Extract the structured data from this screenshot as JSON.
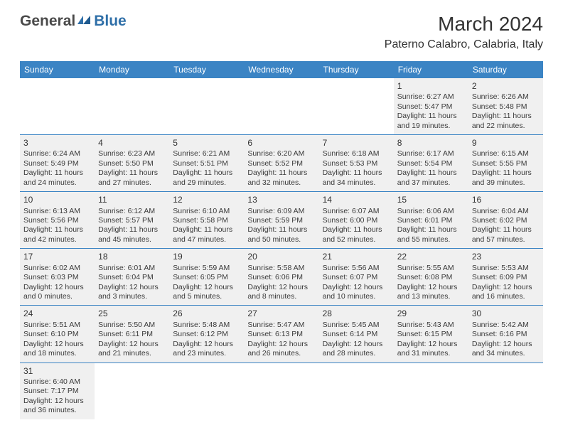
{
  "logo": {
    "general": "General",
    "blue": "Blue"
  },
  "header": {
    "month_title": "March 2024",
    "location": "Paterno Calabro, Calabria, Italy"
  },
  "colors": {
    "header_bar": "#3b84c4",
    "cell_bg": "#f0f0f0",
    "divider": "#3b84c4",
    "text": "#3a3a3a",
    "logo_gray": "#4a4a4a",
    "logo_blue": "#2f6fa8"
  },
  "day_names": [
    "Sunday",
    "Monday",
    "Tuesday",
    "Wednesday",
    "Thursday",
    "Friday",
    "Saturday"
  ],
  "weeks": [
    [
      null,
      null,
      null,
      null,
      null,
      {
        "d": "1",
        "sr": "Sunrise: 6:27 AM",
        "ss": "Sunset: 5:47 PM",
        "dl1": "Daylight: 11 hours",
        "dl2": "and 19 minutes."
      },
      {
        "d": "2",
        "sr": "Sunrise: 6:26 AM",
        "ss": "Sunset: 5:48 PM",
        "dl1": "Daylight: 11 hours",
        "dl2": "and 22 minutes."
      }
    ],
    [
      {
        "d": "3",
        "sr": "Sunrise: 6:24 AM",
        "ss": "Sunset: 5:49 PM",
        "dl1": "Daylight: 11 hours",
        "dl2": "and 24 minutes."
      },
      {
        "d": "4",
        "sr": "Sunrise: 6:23 AM",
        "ss": "Sunset: 5:50 PM",
        "dl1": "Daylight: 11 hours",
        "dl2": "and 27 minutes."
      },
      {
        "d": "5",
        "sr": "Sunrise: 6:21 AM",
        "ss": "Sunset: 5:51 PM",
        "dl1": "Daylight: 11 hours",
        "dl2": "and 29 minutes."
      },
      {
        "d": "6",
        "sr": "Sunrise: 6:20 AM",
        "ss": "Sunset: 5:52 PM",
        "dl1": "Daylight: 11 hours",
        "dl2": "and 32 minutes."
      },
      {
        "d": "7",
        "sr": "Sunrise: 6:18 AM",
        "ss": "Sunset: 5:53 PM",
        "dl1": "Daylight: 11 hours",
        "dl2": "and 34 minutes."
      },
      {
        "d": "8",
        "sr": "Sunrise: 6:17 AM",
        "ss": "Sunset: 5:54 PM",
        "dl1": "Daylight: 11 hours",
        "dl2": "and 37 minutes."
      },
      {
        "d": "9",
        "sr": "Sunrise: 6:15 AM",
        "ss": "Sunset: 5:55 PM",
        "dl1": "Daylight: 11 hours",
        "dl2": "and 39 minutes."
      }
    ],
    [
      {
        "d": "10",
        "sr": "Sunrise: 6:13 AM",
        "ss": "Sunset: 5:56 PM",
        "dl1": "Daylight: 11 hours",
        "dl2": "and 42 minutes."
      },
      {
        "d": "11",
        "sr": "Sunrise: 6:12 AM",
        "ss": "Sunset: 5:57 PM",
        "dl1": "Daylight: 11 hours",
        "dl2": "and 45 minutes."
      },
      {
        "d": "12",
        "sr": "Sunrise: 6:10 AM",
        "ss": "Sunset: 5:58 PM",
        "dl1": "Daylight: 11 hours",
        "dl2": "and 47 minutes."
      },
      {
        "d": "13",
        "sr": "Sunrise: 6:09 AM",
        "ss": "Sunset: 5:59 PM",
        "dl1": "Daylight: 11 hours",
        "dl2": "and 50 minutes."
      },
      {
        "d": "14",
        "sr": "Sunrise: 6:07 AM",
        "ss": "Sunset: 6:00 PM",
        "dl1": "Daylight: 11 hours",
        "dl2": "and 52 minutes."
      },
      {
        "d": "15",
        "sr": "Sunrise: 6:06 AM",
        "ss": "Sunset: 6:01 PM",
        "dl1": "Daylight: 11 hours",
        "dl2": "and 55 minutes."
      },
      {
        "d": "16",
        "sr": "Sunrise: 6:04 AM",
        "ss": "Sunset: 6:02 PM",
        "dl1": "Daylight: 11 hours",
        "dl2": "and 57 minutes."
      }
    ],
    [
      {
        "d": "17",
        "sr": "Sunrise: 6:02 AM",
        "ss": "Sunset: 6:03 PM",
        "dl1": "Daylight: 12 hours",
        "dl2": "and 0 minutes."
      },
      {
        "d": "18",
        "sr": "Sunrise: 6:01 AM",
        "ss": "Sunset: 6:04 PM",
        "dl1": "Daylight: 12 hours",
        "dl2": "and 3 minutes."
      },
      {
        "d": "19",
        "sr": "Sunrise: 5:59 AM",
        "ss": "Sunset: 6:05 PM",
        "dl1": "Daylight: 12 hours",
        "dl2": "and 5 minutes."
      },
      {
        "d": "20",
        "sr": "Sunrise: 5:58 AM",
        "ss": "Sunset: 6:06 PM",
        "dl1": "Daylight: 12 hours",
        "dl2": "and 8 minutes."
      },
      {
        "d": "21",
        "sr": "Sunrise: 5:56 AM",
        "ss": "Sunset: 6:07 PM",
        "dl1": "Daylight: 12 hours",
        "dl2": "and 10 minutes."
      },
      {
        "d": "22",
        "sr": "Sunrise: 5:55 AM",
        "ss": "Sunset: 6:08 PM",
        "dl1": "Daylight: 12 hours",
        "dl2": "and 13 minutes."
      },
      {
        "d": "23",
        "sr": "Sunrise: 5:53 AM",
        "ss": "Sunset: 6:09 PM",
        "dl1": "Daylight: 12 hours",
        "dl2": "and 16 minutes."
      }
    ],
    [
      {
        "d": "24",
        "sr": "Sunrise: 5:51 AM",
        "ss": "Sunset: 6:10 PM",
        "dl1": "Daylight: 12 hours",
        "dl2": "and 18 minutes."
      },
      {
        "d": "25",
        "sr": "Sunrise: 5:50 AM",
        "ss": "Sunset: 6:11 PM",
        "dl1": "Daylight: 12 hours",
        "dl2": "and 21 minutes."
      },
      {
        "d": "26",
        "sr": "Sunrise: 5:48 AM",
        "ss": "Sunset: 6:12 PM",
        "dl1": "Daylight: 12 hours",
        "dl2": "and 23 minutes."
      },
      {
        "d": "27",
        "sr": "Sunrise: 5:47 AM",
        "ss": "Sunset: 6:13 PM",
        "dl1": "Daylight: 12 hours",
        "dl2": "and 26 minutes."
      },
      {
        "d": "28",
        "sr": "Sunrise: 5:45 AM",
        "ss": "Sunset: 6:14 PM",
        "dl1": "Daylight: 12 hours",
        "dl2": "and 28 minutes."
      },
      {
        "d": "29",
        "sr": "Sunrise: 5:43 AM",
        "ss": "Sunset: 6:15 PM",
        "dl1": "Daylight: 12 hours",
        "dl2": "and 31 minutes."
      },
      {
        "d": "30",
        "sr": "Sunrise: 5:42 AM",
        "ss": "Sunset: 6:16 PM",
        "dl1": "Daylight: 12 hours",
        "dl2": "and 34 minutes."
      }
    ],
    [
      {
        "d": "31",
        "sr": "Sunrise: 6:40 AM",
        "ss": "Sunset: 7:17 PM",
        "dl1": "Daylight: 12 hours",
        "dl2": "and 36 minutes."
      },
      null,
      null,
      null,
      null,
      null,
      null
    ]
  ]
}
